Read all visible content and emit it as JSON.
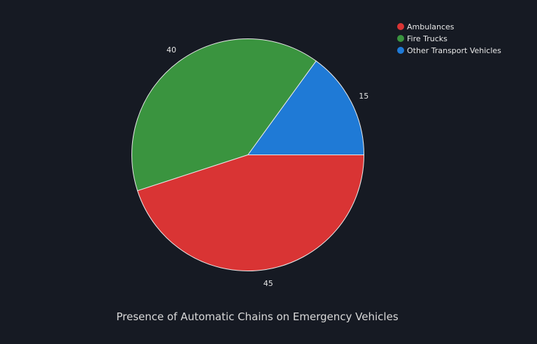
{
  "chart_data": {
    "type": "pie",
    "title": "Presence of Automatic Chains on Emergency Vehicles",
    "categories": [
      "Ambulances",
      "Fire Trucks",
      "Other Transport Vehicles"
    ],
    "values": [
      45,
      40,
      15
    ],
    "colors": [
      "#d93434",
      "#3a943f",
      "#1f7ad6"
    ],
    "legend_position": "top-right",
    "data_labels": true
  },
  "legend": {
    "items": [
      {
        "label": "Ambulances",
        "color": "#d93434"
      },
      {
        "label": "Fire Trucks",
        "color": "#3a943f"
      },
      {
        "label": "Other Transport Vehicles",
        "color": "#1f7ad6"
      }
    ]
  },
  "colors": {
    "background": "#161a23",
    "slice_border": "#e8e8e8",
    "text": "#e6e6e6"
  }
}
